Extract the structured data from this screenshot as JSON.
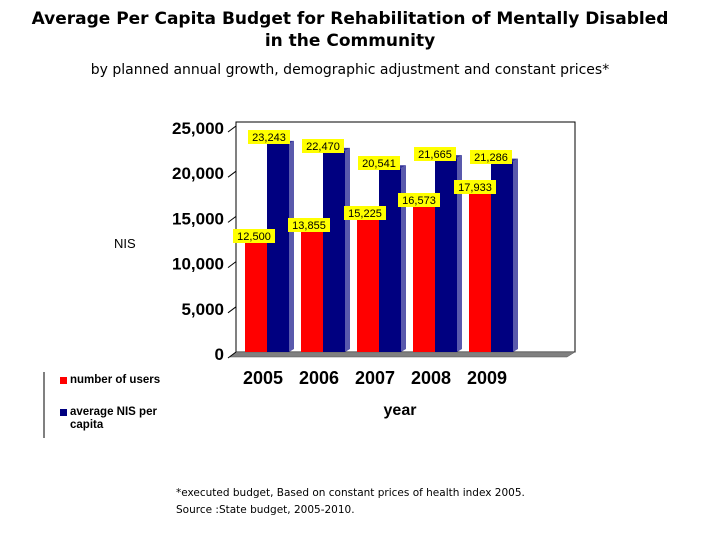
{
  "title_line1": "Average Per Capita Budget for Rehabilitation of Mentally Disabled",
  "title_line2": "in the Community",
  "subtitle": "by planned annual growth, demographic adjustment and constant prices*",
  "footnote_line1": "*executed budget, Based on constant prices of health index 2005.",
  "footnote_line2": "Source :State budget, 2005-2010.",
  "colors": {
    "users": "#ff0000",
    "per_capita": "#000080",
    "label_bg": "#ffff00",
    "plot_bg": "#ffffff",
    "floor": "#808080"
  },
  "chart_data": {
    "type": "bar",
    "categories": [
      "2005",
      "2006",
      "2007",
      "2008",
      "2009"
    ],
    "series": [
      {
        "name": "number of users",
        "values": [
          12500,
          13855,
          15225,
          16573,
          17933
        ],
        "labels": [
          "12,500",
          "13,855",
          "15,225",
          "16,573",
          "17,933"
        ]
      },
      {
        "name": "average NIS per capita",
        "values": [
          23243,
          22470,
          20541,
          21665,
          21286
        ],
        "labels": [
          "23,243",
          "22,470",
          "20,541",
          "21,665",
          "21,286"
        ]
      }
    ],
    "ylabel": "NIS",
    "xlabel": "year",
    "ylim": [
      0,
      25000
    ],
    "yticks": [
      0,
      5000,
      10000,
      15000,
      20000,
      25000
    ],
    "ytick_labels": [
      "0",
      "5,000",
      "10,000",
      "15,000",
      "20,000",
      "25,000"
    ],
    "legend_position": "bottom-left",
    "grid": false
  }
}
